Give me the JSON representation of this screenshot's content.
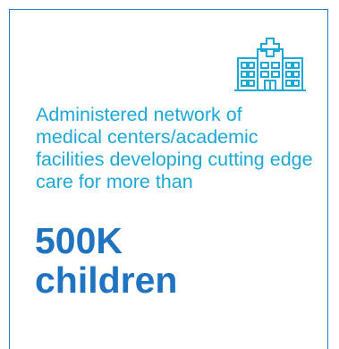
{
  "card": {
    "icon": "hospital-icon",
    "description": "Administered network of medical centers/academic facilities developing cutting edge care for more than",
    "stat_value": "500K",
    "stat_label": "children"
  },
  "colors": {
    "border": "#2a78c6",
    "description_text": "#1ca8d6",
    "stat_text": "#1f73c1",
    "icon": "#1ca8d6"
  }
}
